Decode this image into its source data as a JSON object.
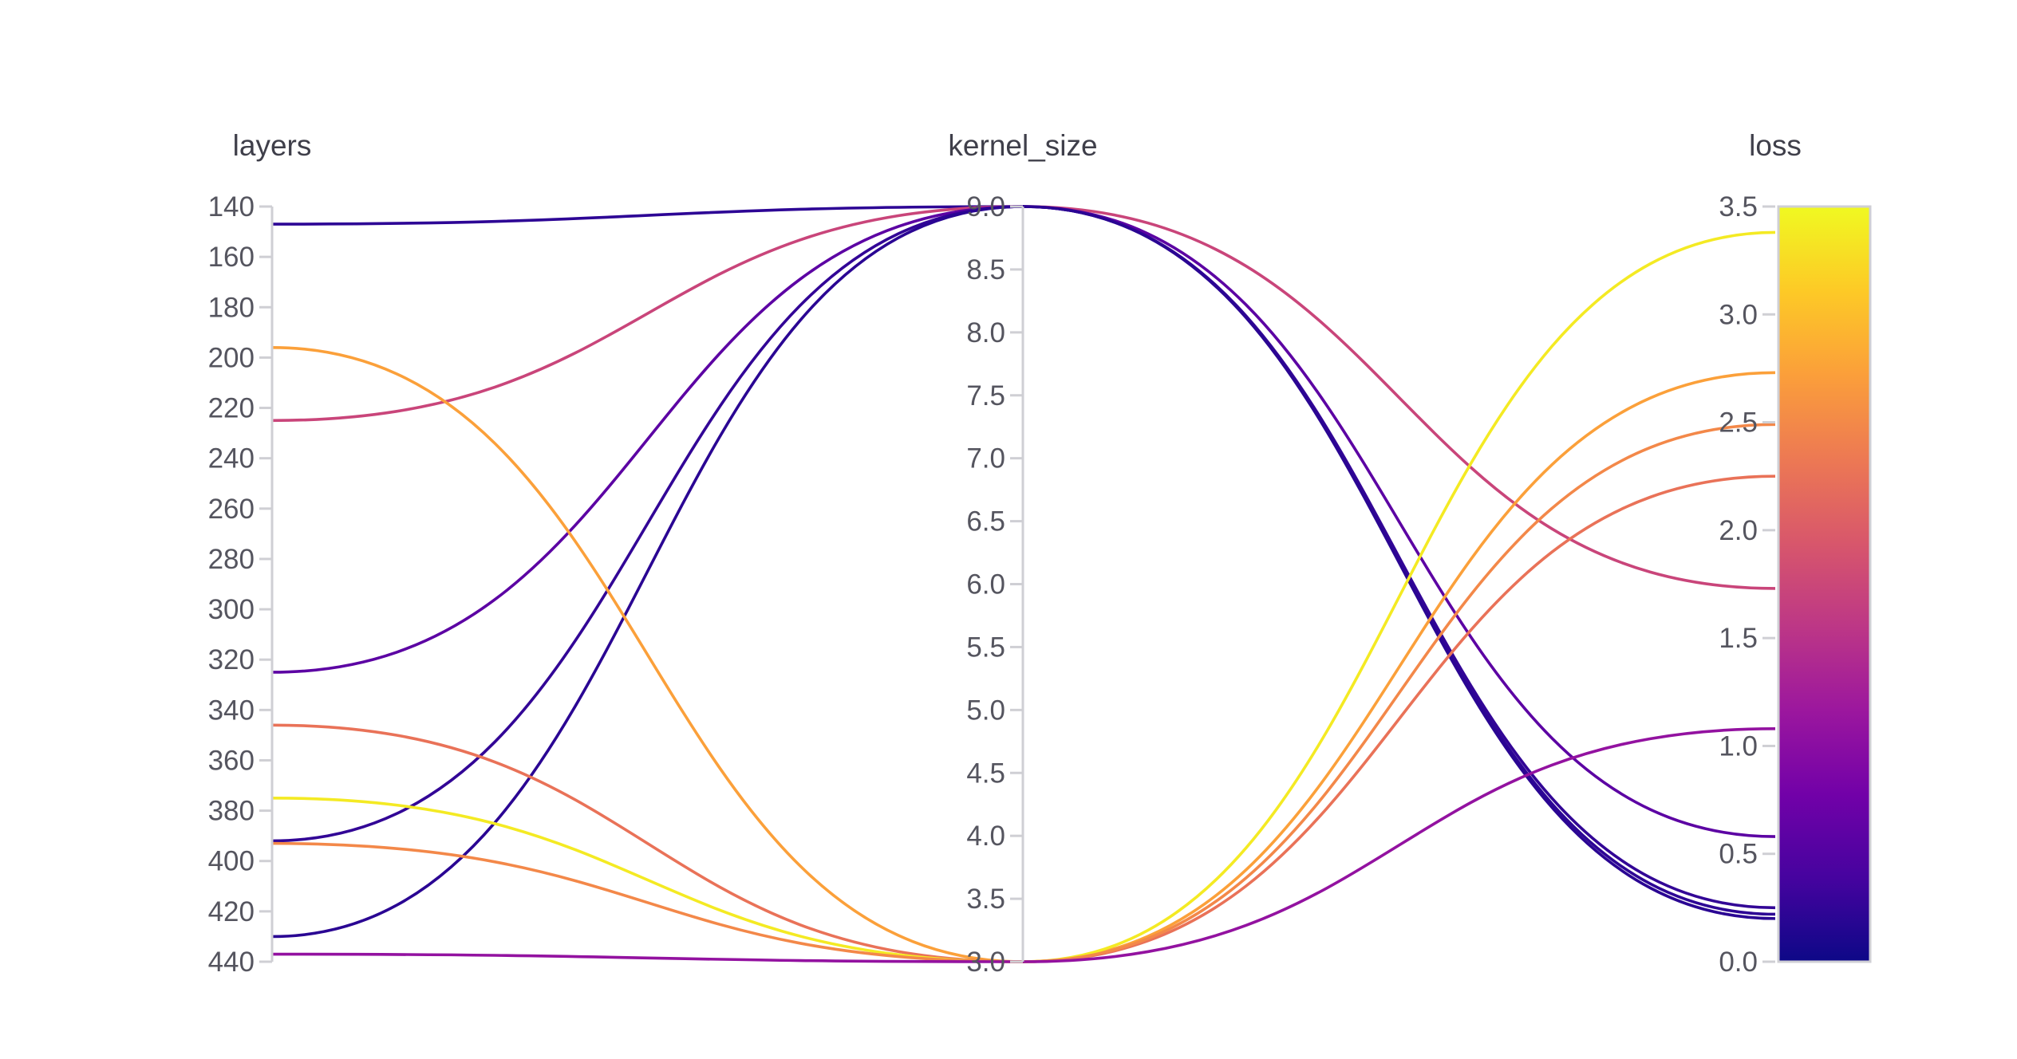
{
  "chart_data": {
    "type": "parallel_coordinates",
    "dimensions": [
      {
        "name": "layers",
        "range": [
          140,
          440
        ],
        "ticks": [
          140,
          160,
          180,
          200,
          220,
          240,
          260,
          280,
          300,
          320,
          340,
          360,
          380,
          400,
          420,
          440
        ],
        "tick_labels": [
          "140",
          "160",
          "180",
          "200",
          "220",
          "240",
          "260",
          "280",
          "300",
          "320",
          "340",
          "360",
          "380",
          "400",
          "420",
          "440"
        ]
      },
      {
        "name": "kernel_size",
        "range": [
          3.0,
          9.0
        ],
        "ticks": [
          3.0,
          3.5,
          4.0,
          4.5,
          5.0,
          5.5,
          6.0,
          6.5,
          7.0,
          7.5,
          8.0,
          8.5,
          9.0
        ],
        "tick_labels": [
          "3.0",
          "3.5",
          "4.0",
          "4.5",
          "5.0",
          "5.5",
          "6.0",
          "6.5",
          "7.0",
          "7.5",
          "8.0",
          "8.5",
          "9.0"
        ]
      },
      {
        "name": "loss",
        "range": [
          0.0,
          3.5
        ],
        "ticks": [
          0.0,
          0.5,
          1.0,
          1.5,
          2.0,
          2.5,
          3.0,
          3.5
        ],
        "tick_labels": [
          "0.0",
          "0.5",
          "1.0",
          "1.5",
          "2.0",
          "2.5",
          "3.0",
          "3.5"
        ]
      }
    ],
    "runs": [
      {
        "layers": 147,
        "kernel_size": 9,
        "loss": 0.22
      },
      {
        "layers": 225,
        "kernel_size": 9,
        "loss": 1.73
      },
      {
        "layers": 325,
        "kernel_size": 9,
        "loss": 0.58
      },
      {
        "layers": 392,
        "kernel_size": 9,
        "loss": 0.25
      },
      {
        "layers": 430,
        "kernel_size": 9,
        "loss": 0.2
      },
      {
        "layers": 196,
        "kernel_size": 3,
        "loss": 2.73
      },
      {
        "layers": 346,
        "kernel_size": 3,
        "loss": 2.25
      },
      {
        "layers": 375,
        "kernel_size": 3,
        "loss": 3.38
      },
      {
        "layers": 393,
        "kernel_size": 3,
        "loss": 2.49
      },
      {
        "layers": 437,
        "kernel_size": 3,
        "loss": 1.08
      }
    ],
    "colorscale": {
      "dimension": "loss",
      "range": [
        0.0,
        3.5
      ],
      "stops": [
        "#0d0887",
        "#46039f",
        "#7201a8",
        "#9c179e",
        "#bd3786",
        "#d8576b",
        "#ed7953",
        "#fb9f3a",
        "#fdca26",
        "#f0f921"
      ]
    }
  }
}
